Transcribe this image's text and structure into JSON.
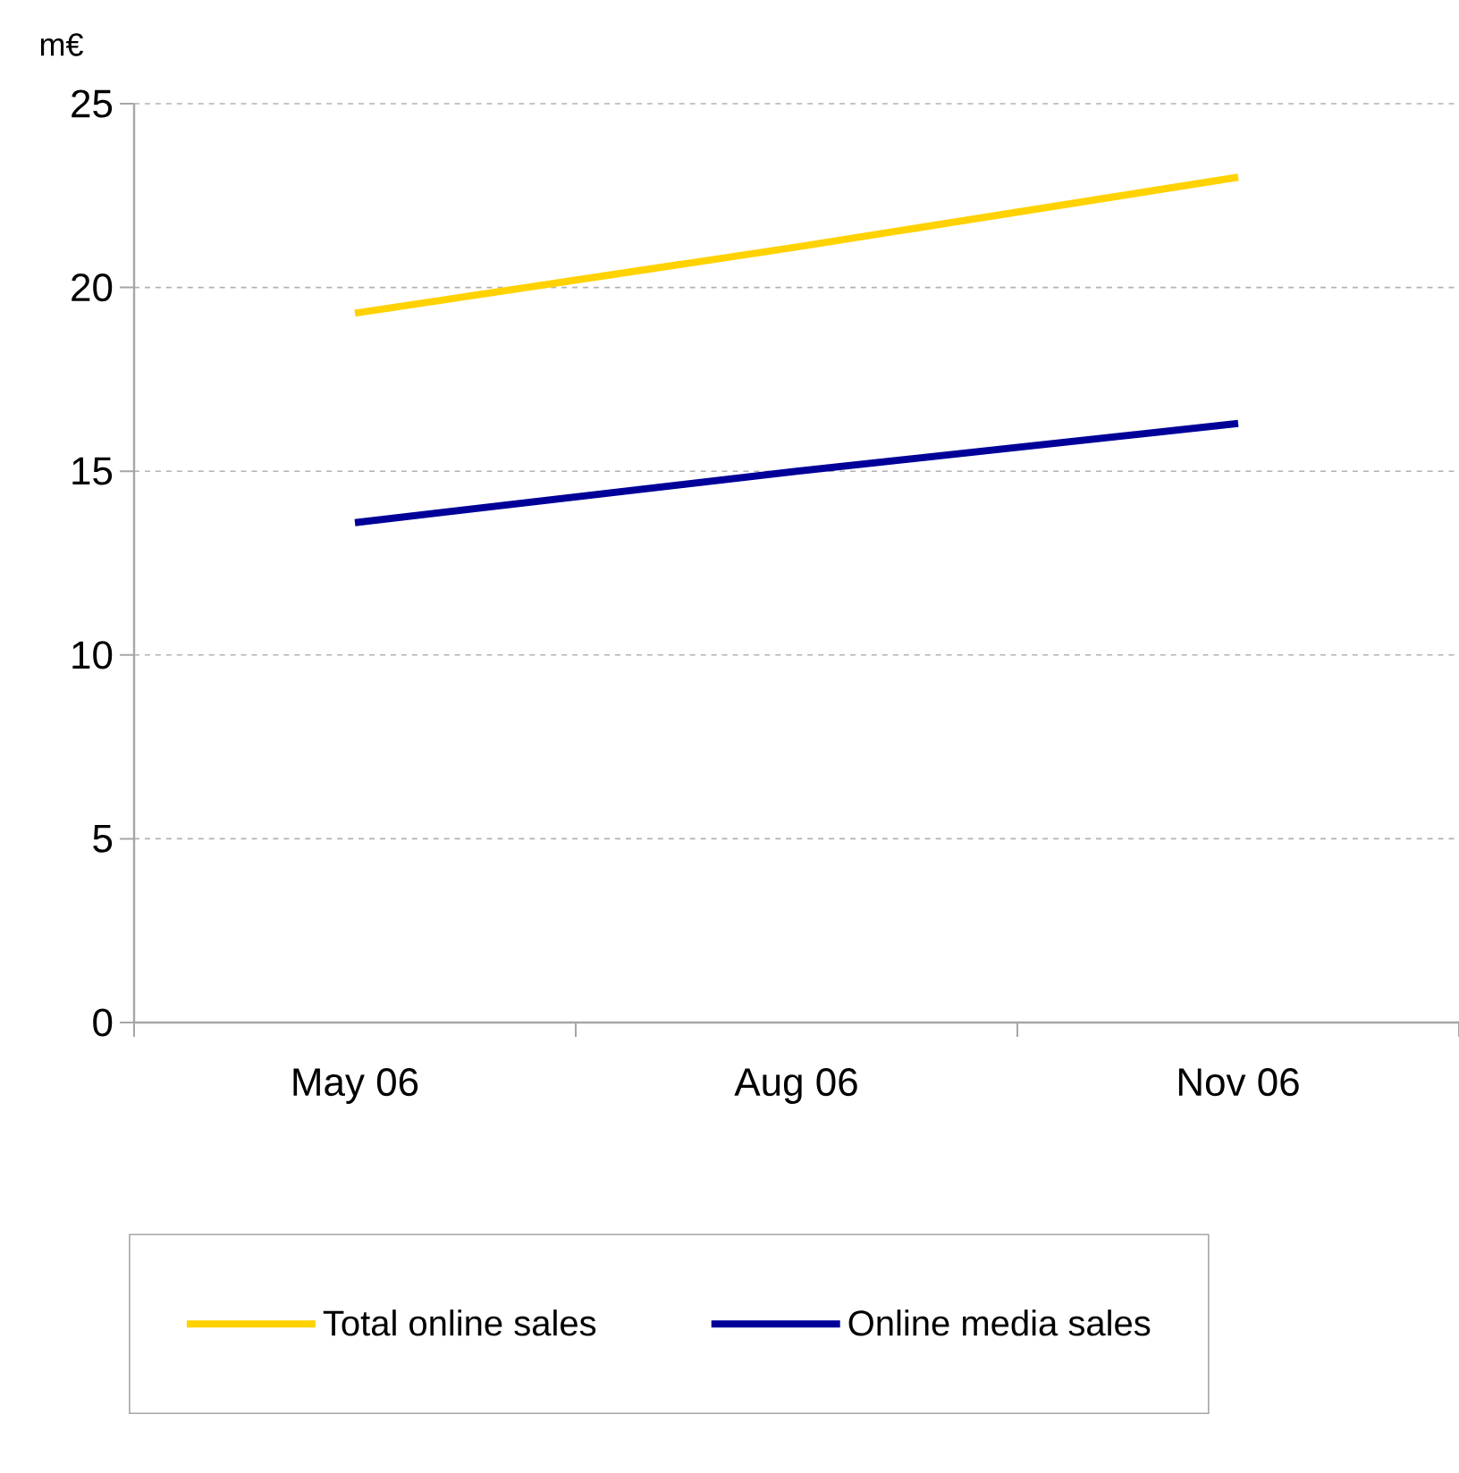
{
  "chart_data": {
    "type": "line",
    "ylabel": "m€",
    "categories": [
      "May 06",
      "Aug 06",
      "Nov 06"
    ],
    "series": [
      {
        "name": "Total online sales",
        "color": "#ffd200",
        "values": [
          19.3,
          21.1,
          23.0
        ]
      },
      {
        "name": "Online media sales",
        "color": "#000099",
        "values": [
          13.6,
          15.0,
          16.3
        ]
      }
    ],
    "ylim": [
      0,
      25
    ],
    "yticks": [
      0,
      5,
      10,
      15,
      20,
      25
    ],
    "grid": "y",
    "legend": "bottom",
    "marker": "none",
    "line_style": "solid"
  }
}
